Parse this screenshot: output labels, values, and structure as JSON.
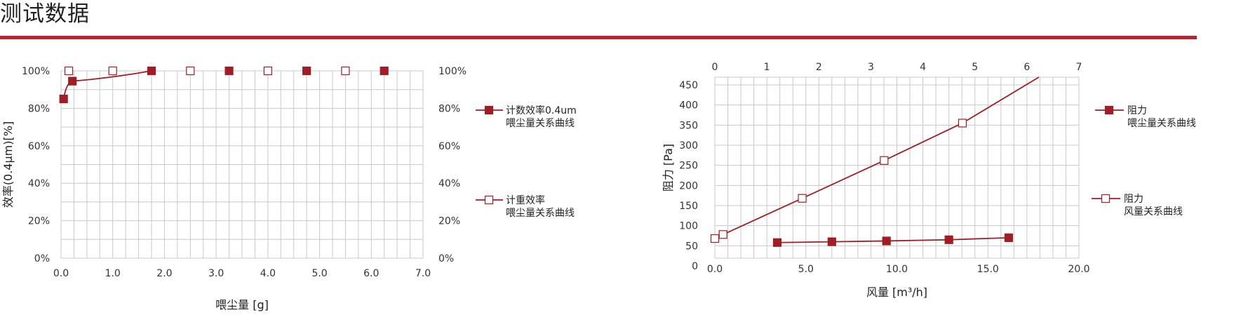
{
  "page": {
    "title": "测试数据",
    "accent_color": "#c0202a",
    "series_color": "#a11d25"
  },
  "chart_data": [
    {
      "type": "scatter",
      "xlabel": "喂尘量 [g]",
      "ylabel": "效率(0.4μm)[%]",
      "xlim": [
        0,
        7
      ],
      "ylim": [
        0,
        100
      ],
      "x_ticks": [
        "0.0",
        "1.0",
        "2.0",
        "3.0",
        "4.0",
        "5.0",
        "6.0",
        "7.0"
      ],
      "y_ticks_left": [
        "0%",
        "20%",
        "40%",
        "60%",
        "80%",
        "100%"
      ],
      "y_ticks_right": [
        "0%",
        "20%",
        "40%",
        "60%",
        "80%",
        "100%"
      ],
      "grid": true,
      "series": [
        {
          "name": "计数效率0.4um",
          "name_line2": "喂尘量关系曲线",
          "marker": "filled-square",
          "line": true,
          "x": [
            0.05,
            0.22,
            1.75,
            3.25,
            4.75,
            6.25
          ],
          "y": [
            85,
            94.5,
            100,
            100,
            100,
            100
          ]
        },
        {
          "name": "计重效率",
          "name_line2": "喂尘量关系曲线",
          "marker": "open-square",
          "line": false,
          "x": [
            0.15,
            1.0,
            2.5,
            4.0,
            5.5
          ],
          "y": [
            100,
            100,
            100,
            100,
            100
          ]
        }
      ]
    },
    {
      "type": "scatter",
      "xlabel": "风量 [m³/h]",
      "ylabel": "阻力 [Pa]",
      "xlim": [
        0,
        20
      ],
      "ylim": [
        0,
        450
      ],
      "x_ticks": [
        "0.0",
        "5.0",
        "10.0",
        "15.0",
        "20.0"
      ],
      "x2_ticks": [
        "0",
        "1",
        "2",
        "3",
        "4",
        "5",
        "6",
        "7"
      ],
      "y_ticks": [
        "0",
        "50",
        "100",
        "150",
        "200",
        "250",
        "300",
        "350",
        "400",
        "450"
      ],
      "grid": true,
      "series": [
        {
          "name": "阻力",
          "name_line2": "喂尘量关系曲线",
          "marker": "filled-square",
          "axis": "top",
          "x": [
            1.2,
            2.25,
            3.3,
            4.5,
            5.65
          ],
          "y": [
            58,
            60,
            62,
            65,
            70
          ]
        },
        {
          "name": "阻力",
          "name_line2": "风量关系曲线",
          "marker": "open-square",
          "axis": "bottom",
          "x": [
            0.0,
            0.45,
            4.8,
            9.3,
            13.6
          ],
          "y": [
            68,
            78,
            168,
            262,
            355
          ],
          "line_end": [
            17.8,
            470
          ]
        }
      ]
    }
  ]
}
